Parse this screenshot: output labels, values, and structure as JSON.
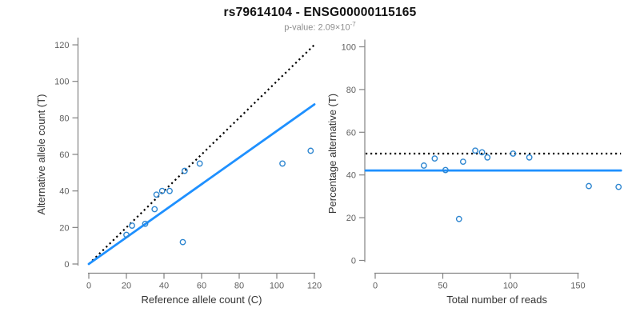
{
  "header": {
    "title": "rs79614104 - ENSG00000115165",
    "pvalue_label": "p-value: ",
    "pvalue_base": "2.09×10",
    "pvalue_exponent": "-7"
  },
  "colors": {
    "regression_blue": "#1e90ff",
    "point_blue": "#2e86d0",
    "identity_black": "#000000",
    "axis_gray": "#838383",
    "tick_text_gray": "#606060",
    "axis_title_gray": "#333333",
    "title_black": "#111111",
    "subtitle_gray": "#8c8c8c"
  },
  "chart_data": [
    {
      "type": "scatter",
      "name": "allele-counts",
      "xlabel": "Reference allele count (C)",
      "ylabel": "Alternative allele count (T)",
      "xlim": [
        0,
        120
      ],
      "ylim": [
        0,
        120
      ],
      "xticks": [
        0,
        20,
        40,
        60,
        80,
        100,
        120
      ],
      "yticks": [
        0,
        20,
        40,
        60,
        80,
        100,
        120
      ],
      "grid": false,
      "legend": "none",
      "points": [
        [
          20,
          16
        ],
        [
          23,
          21
        ],
        [
          30,
          22
        ],
        [
          35,
          30
        ],
        [
          36,
          38
        ],
        [
          39,
          40
        ],
        [
          43,
          40
        ],
        [
          50,
          12
        ],
        [
          51,
          51
        ],
        [
          59,
          55
        ],
        [
          103,
          55
        ],
        [
          118,
          62
        ]
      ],
      "lines": [
        {
          "id": "identity-line",
          "style": "dotted",
          "color_key": "identity_black",
          "from": [
            0,
            0
          ],
          "to": [
            120,
            120
          ]
        },
        {
          "id": "regression-line",
          "style": "solid",
          "color_key": "regression_blue",
          "from": [
            0,
            0
          ],
          "to": [
            120,
            87.4
          ],
          "slope": 0.728
        }
      ]
    },
    {
      "type": "scatter",
      "name": "percentage-alternative",
      "xlabel": "Total number of reads",
      "ylabel": "Percentage alternative (T)",
      "xlim": [
        0,
        180
      ],
      "ylim": [
        0,
        100
      ],
      "xticks": [
        0,
        50,
        100,
        150
      ],
      "yticks": [
        0,
        20,
        40,
        60,
        80,
        100
      ],
      "grid": false,
      "legend": "none",
      "points": [
        [
          36,
          44.4
        ],
        [
          44,
          47.7
        ],
        [
          52,
          42.3
        ],
        [
          62,
          19.4
        ],
        [
          65,
          46.2
        ],
        [
          74,
          51.4
        ],
        [
          79,
          50.6
        ],
        [
          83,
          48.2
        ],
        [
          102,
          50.0
        ],
        [
          114,
          48.2
        ],
        [
          158,
          34.8
        ],
        [
          180,
          34.4
        ]
      ],
      "lines": [
        {
          "id": "expected-percentage-line",
          "style": "dotted",
          "color_key": "identity_black",
          "y": 50
        },
        {
          "id": "observed-percentage-line",
          "style": "solid",
          "color_key": "regression_blue",
          "y": 42.1
        }
      ]
    }
  ]
}
